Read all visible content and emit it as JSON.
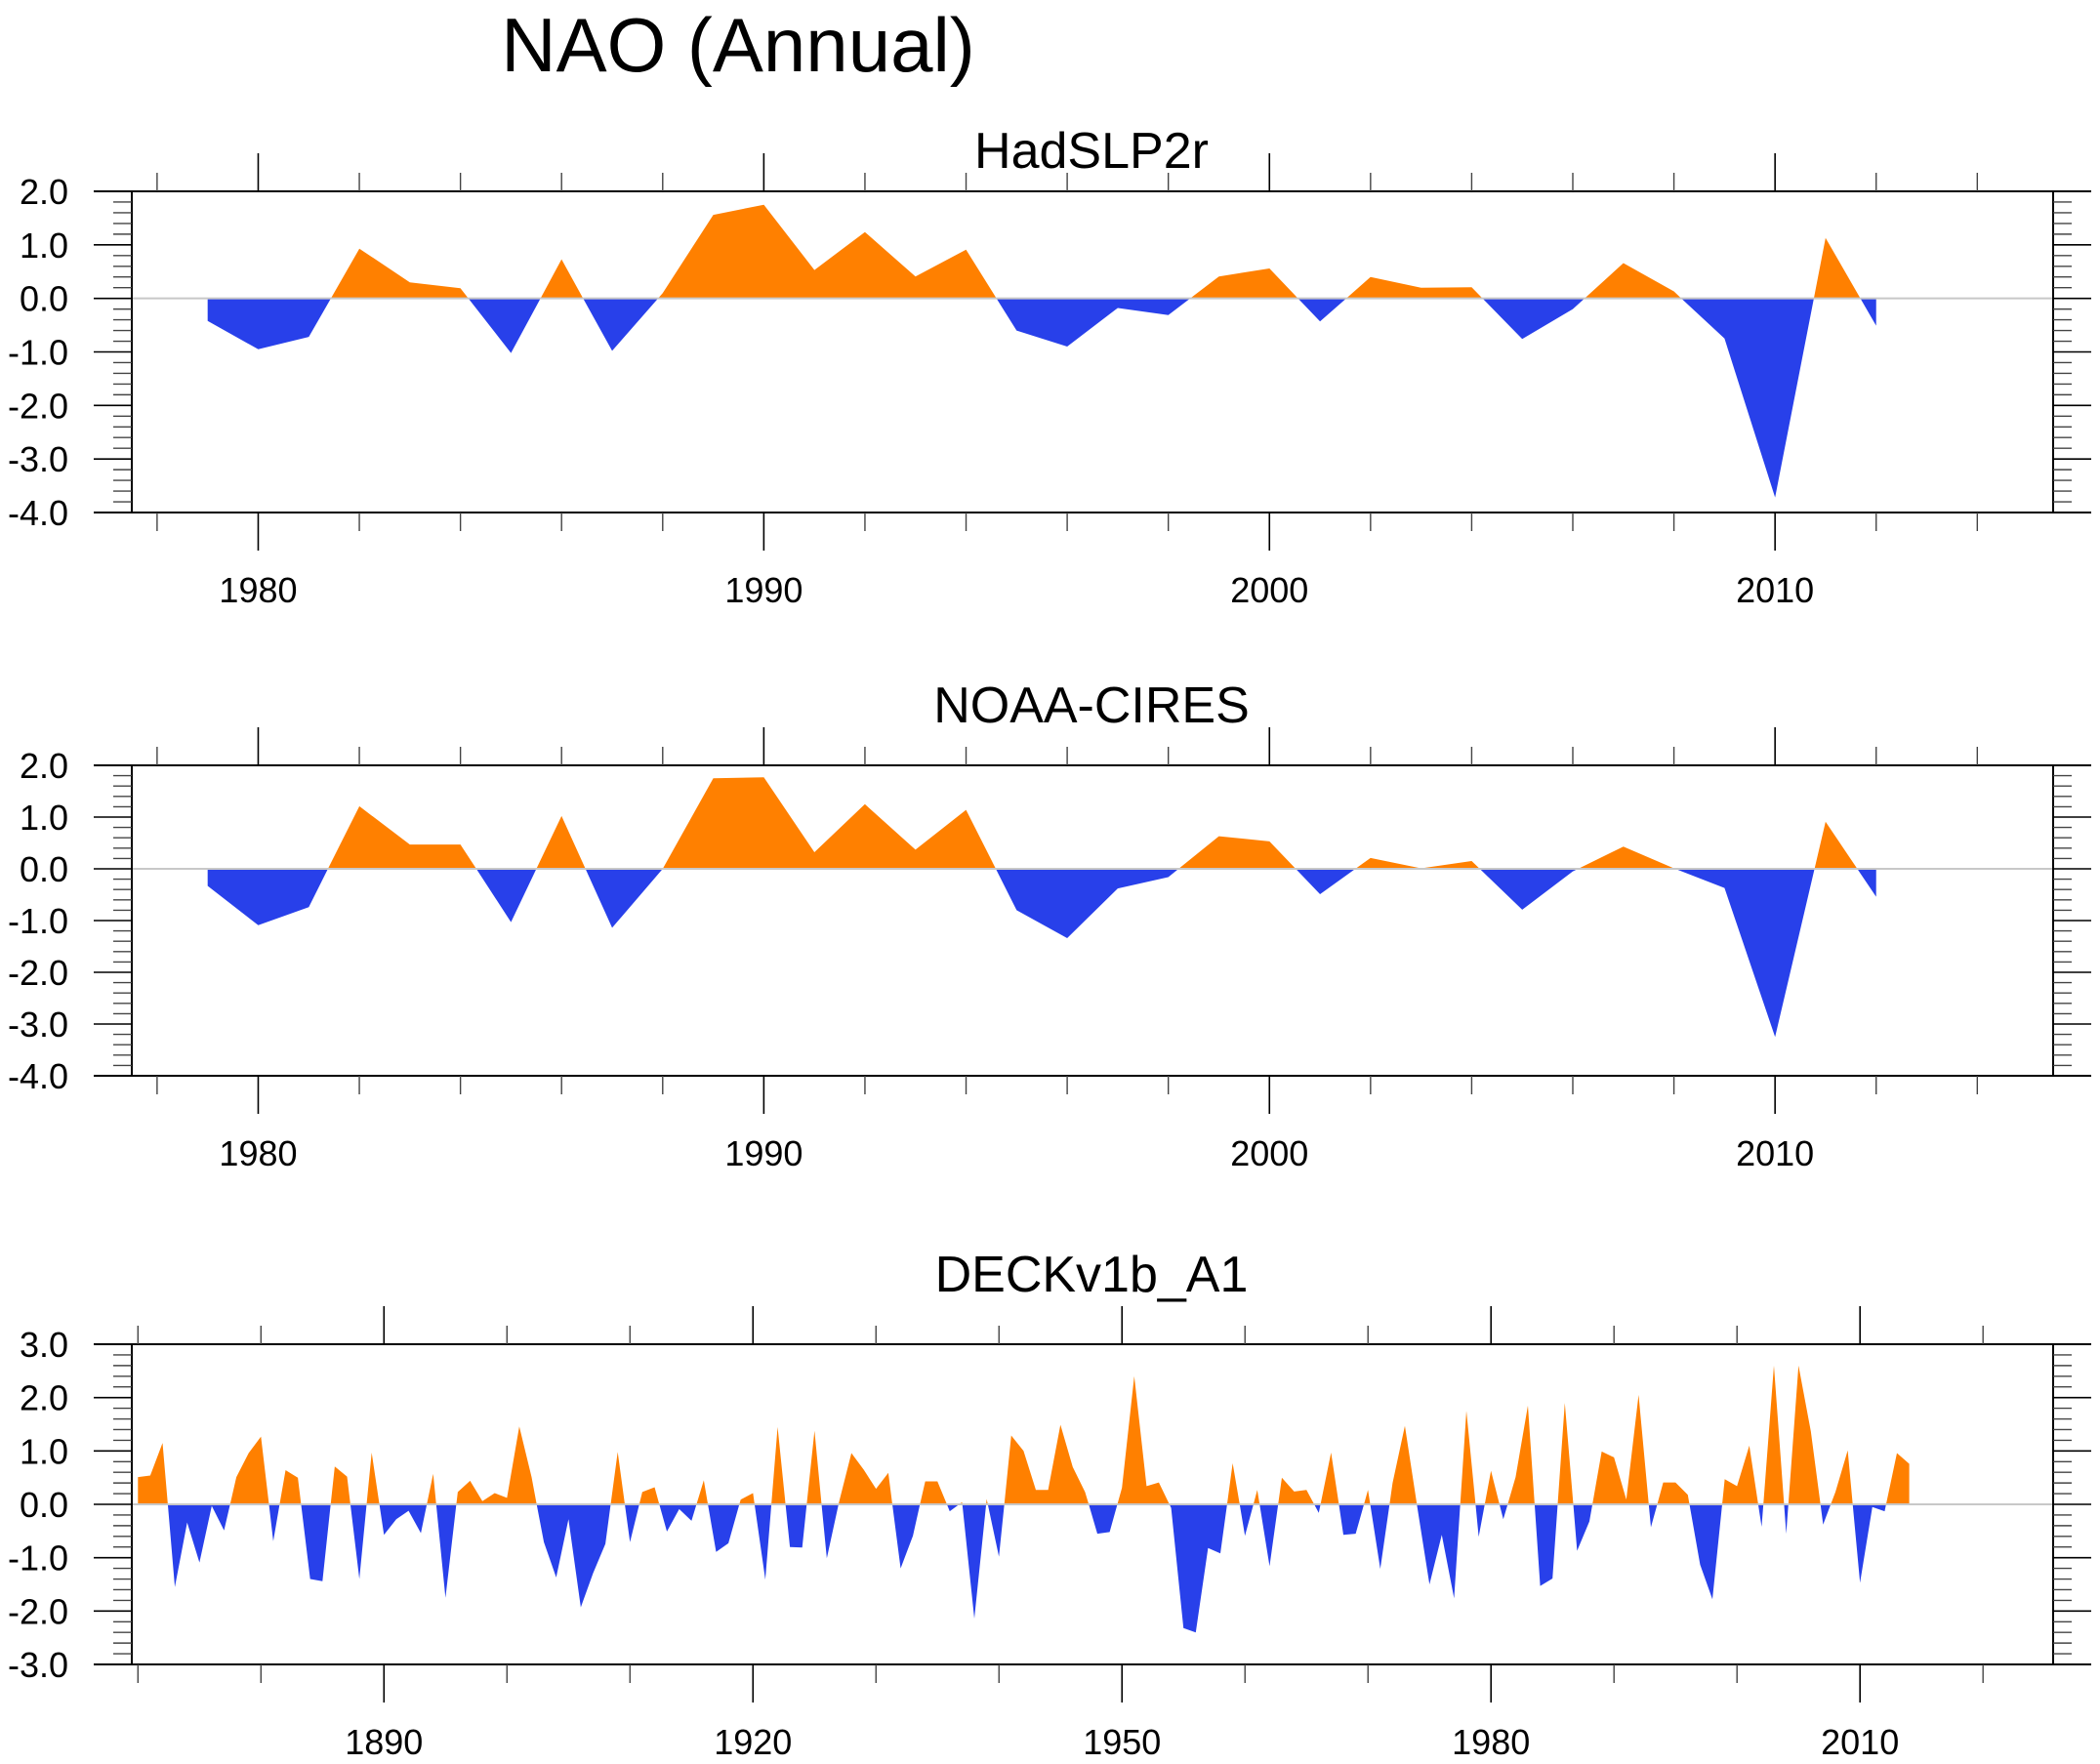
{
  "figure": {
    "title": "NAO (Annual)"
  },
  "colors": {
    "positive": "#ff8000",
    "negative": "#2840ea",
    "zero_line": "#c8c8c8",
    "axis": "#000000"
  },
  "chart_data": [
    {
      "type": "area",
      "title": "HadSLP2r",
      "xlabel": "",
      "ylabel": "",
      "xlim": [
        1977.5,
        2015.5
      ],
      "ylim": [
        -4.0,
        2.0
      ],
      "yticks": [
        "2.0",
        "1.0",
        "0.0",
        "-1.0",
        "-2.0",
        "-3.0",
        "-4.0"
      ],
      "ytick_values": [
        2.0,
        1.0,
        0.0,
        -1.0,
        -2.0,
        -3.0,
        -4.0
      ],
      "xticks_major": [
        1980,
        1990,
        2000,
        2010
      ],
      "xtick_labels": [
        "1980",
        "1990",
        "2000",
        "2010"
      ],
      "xtick_minor_step": 2,
      "ytick_minor_step": 0.2,
      "grid": false,
      "fill_above_zero": "positive",
      "fill_below_zero": "negative",
      "x": [
        1979,
        1980,
        1981,
        1982,
        1983,
        1984,
        1985,
        1986,
        1987,
        1988,
        1989,
        1990,
        1991,
        1992,
        1993,
        1994,
        1995,
        1996,
        1997,
        1998,
        1999,
        2000,
        2001,
        2002,
        2003,
        2004,
        2005,
        2006,
        2007,
        2008,
        2009,
        2010,
        2011,
        2012
      ],
      "values": [
        -0.42,
        -0.95,
        -0.72,
        0.93,
        0.3,
        0.19,
        -1.02,
        0.73,
        -0.98,
        0.1,
        1.56,
        1.75,
        0.53,
        1.24,
        0.41,
        0.91,
        -0.6,
        -0.9,
        -0.18,
        -0.31,
        0.41,
        0.56,
        -0.43,
        0.4,
        0.2,
        0.21,
        -0.76,
        -0.2,
        0.66,
        0.13,
        -0.75,
        -3.72,
        1.13,
        -0.51
      ]
    },
    {
      "type": "area",
      "title": "NOAA-CIRES",
      "xlabel": "",
      "ylabel": "",
      "xlim": [
        1977.5,
        2015.5
      ],
      "ylim": [
        -4.0,
        2.0
      ],
      "yticks": [
        "2.0",
        "1.0",
        "0.0",
        "-1.0",
        "-2.0",
        "-3.0",
        "-4.0"
      ],
      "ytick_values": [
        2.0,
        1.0,
        0.0,
        -1.0,
        -2.0,
        -3.0,
        -4.0
      ],
      "xticks_major": [
        1980,
        1990,
        2000,
        2010
      ],
      "xtick_labels": [
        "1980",
        "1990",
        "2000",
        "2010"
      ],
      "xtick_minor_step": 2,
      "ytick_minor_step": 0.2,
      "grid": false,
      "fill_above_zero": "positive",
      "fill_below_zero": "negative",
      "x": [
        1979,
        1980,
        1981,
        1982,
        1983,
        1984,
        1985,
        1986,
        1987,
        1988,
        1989,
        1990,
        1991,
        1992,
        1993,
        1994,
        1995,
        1996,
        1997,
        1998,
        1999,
        2000,
        2001,
        2002,
        2003,
        2004,
        2005,
        2006,
        2007,
        2008,
        2009,
        2010,
        2011,
        2012
      ],
      "values": [
        -0.33,
        -1.09,
        -0.74,
        1.21,
        0.47,
        0.47,
        -1.03,
        1.02,
        -1.14,
        0.0,
        1.75,
        1.77,
        0.32,
        1.25,
        0.37,
        1.14,
        -0.8,
        -1.34,
        -0.38,
        -0.16,
        0.63,
        0.53,
        -0.49,
        0.21,
        0.01,
        0.15,
        -0.79,
        -0.05,
        0.43,
        0.01,
        -0.37,
        -3.25,
        0.91,
        -0.54
      ]
    },
    {
      "type": "area",
      "title": "DECKv1b_A1",
      "xlabel": "",
      "ylabel": "",
      "xlim": [
        1869.5,
        2025.7
      ],
      "ylim": [
        -3.0,
        3.0
      ],
      "yticks": [
        "3.0",
        "2.0",
        "1.0",
        "0.0",
        "-1.0",
        "-2.0",
        "-3.0"
      ],
      "ytick_values": [
        3.0,
        2.0,
        1.0,
        0.0,
        -1.0,
        -2.0,
        -3.0
      ],
      "xticks_major": [
        1890,
        1920,
        1950,
        1980,
        2010
      ],
      "xtick_labels": [
        "1890",
        "1920",
        "1950",
        "1980",
        "2010"
      ],
      "xtick_minor_step": 10,
      "ytick_minor_step": 0.2,
      "grid": false,
      "fill_above_zero": "positive",
      "fill_below_zero": "negative",
      "x_start": 1870,
      "values": [
        0.51,
        0.54,
        1.15,
        -1.55,
        -0.34,
        -1.09,
        -0.03,
        -0.49,
        0.51,
        0.96,
        1.27,
        -0.69,
        0.64,
        0.5,
        -1.4,
        -1.44,
        0.71,
        0.52,
        -1.4,
        0.97,
        -0.57,
        -0.28,
        -0.12,
        -0.54,
        0.57,
        -1.75,
        0.23,
        0.44,
        0.06,
        0.21,
        0.12,
        1.46,
        0.51,
        -0.71,
        -1.37,
        -0.28,
        -1.93,
        -1.29,
        -0.74,
        0.98,
        -0.71,
        0.23,
        0.32,
        -0.51,
        -0.09,
        -0.31,
        0.45,
        -0.89,
        -0.73,
        0.09,
        0.21,
        -1.41,
        1.45,
        -0.8,
        -0.81,
        1.38,
        -1.01,
        0.05,
        0.96,
        0.65,
        0.29,
        0.59,
        -1.2,
        -0.59,
        0.43,
        0.43,
        -0.13,
        0.04,
        -2.14,
        0.1,
        -0.98,
        1.29,
        1.0,
        0.27,
        0.27,
        1.49,
        0.7,
        0.23,
        -0.55,
        -0.52,
        0.31,
        2.4,
        0.34,
        0.41,
        -0.07,
        -2.32,
        -2.4,
        -0.82,
        -0.92,
        0.77,
        -0.59,
        0.27,
        -1.16,
        0.5,
        0.24,
        0.27,
        -0.16,
        0.97,
        -0.57,
        -0.55,
        0.27,
        -1.21,
        0.4,
        1.47,
        -0.04,
        -1.5,
        -0.57,
        -1.76,
        1.75,
        -0.61,
        0.63,
        -0.28,
        0.51,
        1.85,
        -1.53,
        -1.39,
        1.9,
        -0.87,
        -0.32,
        0.99,
        0.88,
        0.09,
        2.05,
        -0.43,
        0.41,
        0.41,
        0.18,
        -1.13,
        -1.78,
        0.47,
        0.34,
        1.1,
        -0.42,
        2.6,
        -0.55,
        2.6,
        1.37,
        -0.38,
        0.23,
        1.01,
        -1.47,
        -0.05,
        -0.13,
        0.96,
        0.76
      ]
    }
  ]
}
